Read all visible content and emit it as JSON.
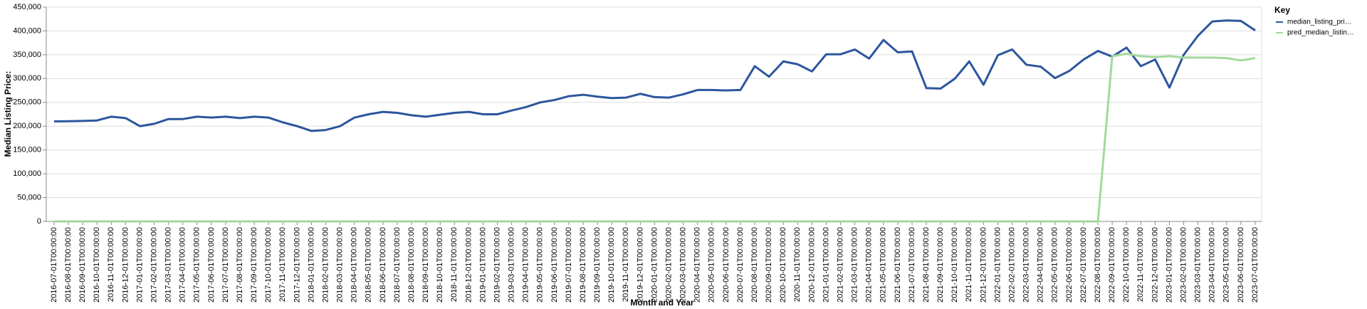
{
  "chart_data": {
    "type": "line",
    "xlabel": "Month and Year",
    "ylabel": "Median Listing Price:",
    "legend_title": "Key",
    "legend": "right",
    "grid": true,
    "categories": [
      "2016-07-01T00:00:00",
      "2016-08-01T00:00:00",
      "2016-09-01T00:00:00",
      "2016-10-01T00:00:00",
      "2016-11-01T00:00:00",
      "2016-12-01T00:00:00",
      "2017-01-01T00:00:00",
      "2017-02-01T00:00:00",
      "2017-03-01T00:00:00",
      "2017-04-01T00:00:00",
      "2017-05-01T00:00:00",
      "2017-06-01T00:00:00",
      "2017-07-01T00:00:00",
      "2017-08-01T00:00:00",
      "2017-09-01T00:00:00",
      "2017-10-01T00:00:00",
      "2017-11-01T00:00:00",
      "2017-12-01T00:00:00",
      "2018-01-01T00:00:00",
      "2018-02-01T00:00:00",
      "2018-03-01T00:00:00",
      "2018-04-01T00:00:00",
      "2018-05-01T00:00:00",
      "2018-06-01T00:00:00",
      "2018-07-01T00:00:00",
      "2018-08-01T00:00:00",
      "2018-09-01T00:00:00",
      "2018-10-01T00:00:00",
      "2018-11-01T00:00:00",
      "2018-12-01T00:00:00",
      "2019-01-01T00:00:00",
      "2019-02-01T00:00:00",
      "2019-03-01T00:00:00",
      "2019-04-01T00:00:00",
      "2019-05-01T00:00:00",
      "2019-06-01T00:00:00",
      "2019-07-01T00:00:00",
      "2019-08-01T00:00:00",
      "2019-09-01T00:00:00",
      "2019-10-01T00:00:00",
      "2019-11-01T00:00:00",
      "2019-12-01T00:00:00",
      "2020-01-01T00:00:00",
      "2020-02-01T00:00:00",
      "2020-03-01T00:00:00",
      "2020-04-01T00:00:00",
      "2020-05-01T00:00:00",
      "2020-06-01T00:00:00",
      "2020-07-01T00:00:00",
      "2020-08-01T00:00:00",
      "2020-09-01T00:00:00",
      "2020-10-01T00:00:00",
      "2020-11-01T00:00:00",
      "2020-12-01T00:00:00",
      "2021-01-01T00:00:00",
      "2021-02-01T00:00:00",
      "2021-03-01T00:00:00",
      "2021-04-01T00:00:00",
      "2021-05-01T00:00:00",
      "2021-06-01T00:00:00",
      "2021-07-01T00:00:00",
      "2021-08-01T00:00:00",
      "2021-09-01T00:00:00",
      "2021-10-01T00:00:00",
      "2021-11-01T00:00:00",
      "2021-12-01T00:00:00",
      "2022-01-01T00:00:00",
      "2022-02-01T00:00:00",
      "2022-03-01T00:00:00",
      "2022-04-01T00:00:00",
      "2022-05-01T00:00:00",
      "2022-06-01T00:00:00",
      "2022-07-01T00:00:00",
      "2022-08-01T00:00:00",
      "2022-09-01T00:00:00",
      "2022-10-01T00:00:00",
      "2022-11-01T00:00:00",
      "2022-12-01T00:00:00",
      "2023-01-01T00:00:00",
      "2023-02-01T00:00:00",
      "2023-03-01T00:00:00",
      "2023-04-01T00:00:00",
      "2023-05-01T00:00:00",
      "2023-06-01T00:00:00",
      "2023-07-01T00:00:00"
    ],
    "series": [
      {
        "name": "median_listing_pri…",
        "color": "#2c569e",
        "values": [
          210000,
          210500,
          211000,
          212000,
          220000,
          217000,
          200000,
          205000,
          215000,
          215000,
          220000,
          218000,
          220000,
          217000,
          220000,
          218000,
          208000,
          200000,
          190000,
          192000,
          200000,
          218000,
          225000,
          230000,
          228000,
          223000,
          220000,
          224000,
          228000,
          230000,
          225000,
          225000,
          233000,
          240000,
          250000,
          255000,
          263000,
          266000,
          262000,
          259000,
          260000,
          268000,
          261000,
          260000,
          267000,
          276000,
          276000,
          275000,
          276000,
          326000,
          304000,
          336000,
          330000,
          315000,
          351000,
          351000,
          361000,
          342000,
          381000,
          355000,
          357000,
          280000,
          279000,
          300000,
          336000,
          287000,
          349000,
          361000,
          329000,
          325000,
          301000,
          316000,
          340000,
          358000,
          346000,
          365000,
          326000,
          340000,
          281000,
          350000,
          390000,
          420000,
          422000,
          421000,
          401000
        ]
      },
      {
        "name": "pred_median_listin…",
        "color": "#a3d99c",
        "values": [
          0,
          0,
          0,
          0,
          0,
          0,
          0,
          0,
          0,
          0,
          0,
          0,
          0,
          0,
          0,
          0,
          0,
          0,
          0,
          0,
          0,
          0,
          0,
          0,
          0,
          0,
          0,
          0,
          0,
          0,
          0,
          0,
          0,
          0,
          0,
          0,
          0,
          0,
          0,
          0,
          0,
          0,
          0,
          0,
          0,
          0,
          0,
          0,
          0,
          0,
          0,
          0,
          0,
          0,
          0,
          0,
          0,
          0,
          0,
          0,
          0,
          0,
          0,
          0,
          0,
          0,
          0,
          0,
          0,
          0,
          0,
          0,
          0,
          0,
          347000,
          352000,
          347000,
          345000,
          347000,
          344000,
          344000,
          344000,
          343000,
          338000,
          343000
        ]
      }
    ],
    "ylim": [
      0,
      450000
    ],
    "yticks": [
      0,
      {
        "value": 50000,
        "label": "50,000"
      },
      {
        "value": 100000,
        "label": "100,000"
      },
      {
        "value": 150000,
        "label": "150,000"
      },
      {
        "value": 200000,
        "label": "200,000"
      },
      {
        "value": 250000,
        "label": "250,000"
      },
      {
        "value": 300000,
        "label": "300,000"
      },
      {
        "value": 350000,
        "label": "350,000"
      },
      {
        "value": 400000,
        "label": "400,000"
      },
      {
        "value": 450000,
        "label": "450,000"
      }
    ]
  }
}
